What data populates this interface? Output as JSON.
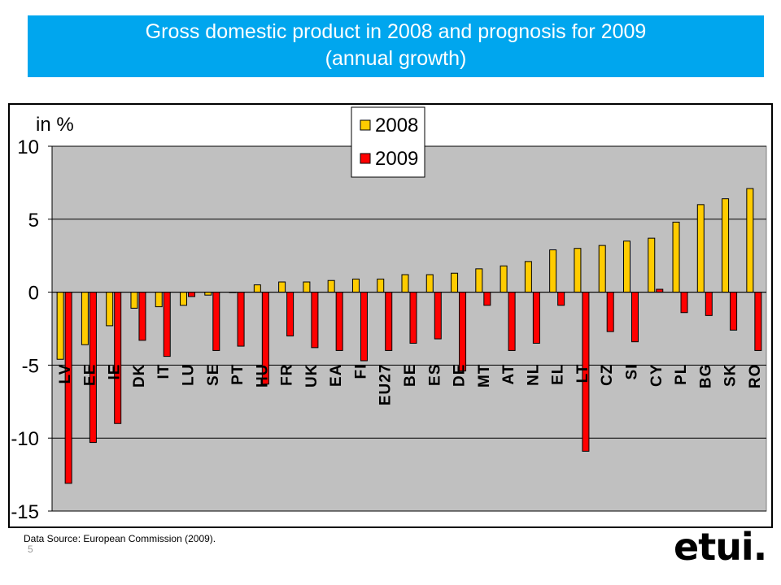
{
  "header": {
    "title_line1": "Gross domestic product in 2008 and prognosis for 2009",
    "title_line2": "(annual growth)"
  },
  "footer": {
    "source": "Data Source: European Commission (2009).",
    "page_number": "5",
    "logo_text": "etui."
  },
  "colors": {
    "banner": "#00a6ee",
    "series_2008": "#ffcc00",
    "series_2009": "#ff0000",
    "plot_area": "#c0c0c0"
  },
  "chart_data": {
    "type": "bar",
    "ylabel": "in %",
    "ylim": [
      -15,
      10
    ],
    "yticks": [
      10,
      5,
      0,
      -5,
      -10,
      -15
    ],
    "grid": true,
    "legend_position": "top-center",
    "categories": [
      "LV",
      "EE",
      "IE",
      "DK",
      "IT",
      "LU",
      "SE",
      "PT",
      "HU",
      "FR",
      "UK",
      "EA",
      "FI",
      "EU27",
      "BE",
      "ES",
      "DE",
      "MT",
      "AT",
      "NL",
      "EL",
      "LT",
      "CZ",
      "SI",
      "CY",
      "PL",
      "BG",
      "SK",
      "RO"
    ],
    "series": [
      {
        "name": "2008",
        "color": "#ffcc00",
        "values": [
          -4.6,
          -3.6,
          -2.3,
          -1.1,
          -1.0,
          -0.9,
          -0.2,
          0.0,
          0.5,
          0.7,
          0.7,
          0.8,
          0.9,
          0.9,
          1.2,
          1.2,
          1.3,
          1.6,
          1.8,
          2.1,
          2.9,
          3.0,
          3.2,
          3.5,
          3.7,
          4.8,
          6.0,
          6.4,
          7.1
        ]
      },
      {
        "name": "2009",
        "color": "#ff0000",
        "values": [
          -13.1,
          -10.3,
          -9.0,
          -3.3,
          -4.4,
          -0.3,
          -4.0,
          -3.7,
          -6.3,
          -3.0,
          -3.8,
          -4.0,
          -4.7,
          -4.0,
          -3.5,
          -3.2,
          -5.4,
          -0.9,
          -4.0,
          -3.5,
          -0.9,
          -10.9,
          -2.7,
          -3.4,
          0.2,
          -1.4,
          -1.6,
          -2.6,
          -4.0
        ]
      }
    ]
  }
}
